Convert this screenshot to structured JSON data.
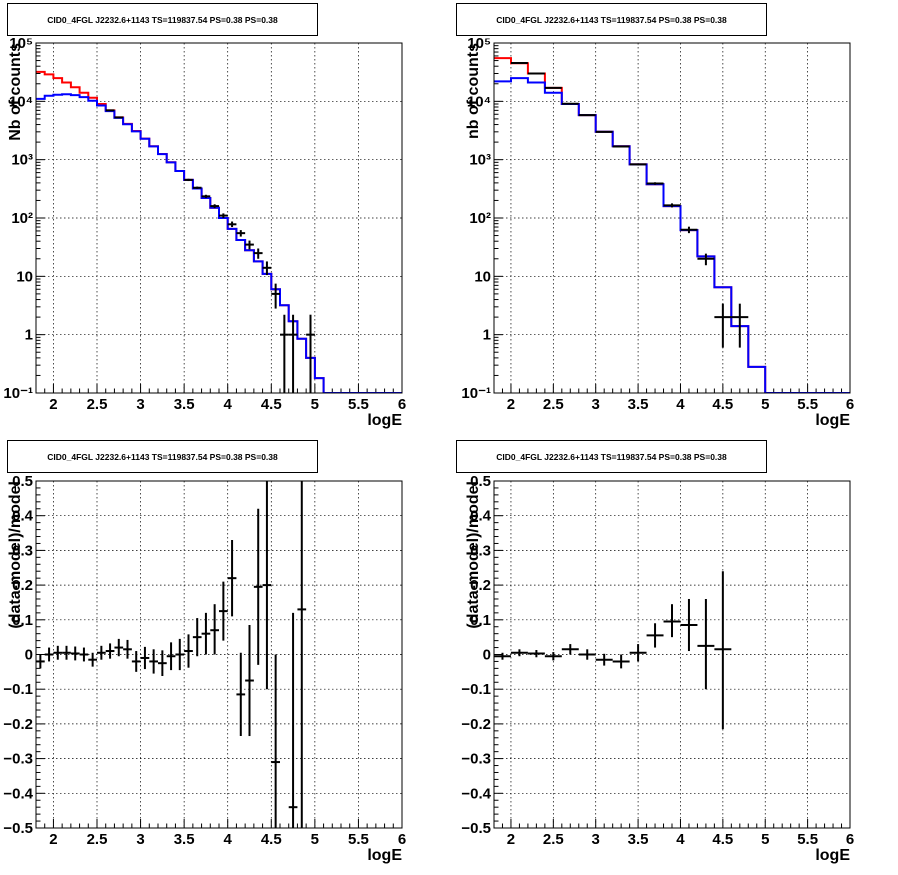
{
  "chart_data": [
    {
      "type": "line",
      "title": "CID0_4FGL J2232.6+1143 TS=119837.54 PS=0.38 PS=0.38",
      "xlabel": "logE",
      "ylabel": "Nb of counts",
      "xlim": [
        1.8,
        6.0
      ],
      "ylim": [
        0.1,
        100000
      ],
      "yscale": "log",
      "grid": true,
      "xticks": [
        "2",
        "2.5",
        "3",
        "3.5",
        "4",
        "4.5",
        "5",
        "5.5",
        "6"
      ],
      "yticks": [
        "10⁻¹",
        "1",
        "10",
        "10²",
        "10³",
        "10⁴",
        "10⁵"
      ],
      "series": [
        {
          "color": "#ff0000",
          "style": "step",
          "bin_edges": [
            1.8,
            1.9,
            2.0,
            2.1,
            2.2,
            2.3,
            2.4,
            2.5,
            2.6,
            2.7,
            2.8,
            2.9,
            3.0,
            3.1,
            3.2,
            3.3,
            3.4,
            3.5,
            3.6,
            3.7,
            3.8,
            3.9,
            4.0,
            4.1,
            4.2,
            4.3,
            4.4,
            4.5,
            4.6,
            4.7,
            4.8,
            4.9,
            5.0,
            5.1,
            5.2,
            5.3,
            5.4,
            5.5,
            5.6,
            5.7,
            5.8,
            5.9,
            6.0
          ],
          "values": [
            32000,
            29000,
            25000,
            21000,
            17500,
            14000,
            11500,
            9000,
            7000,
            5300,
            4100,
            3100,
            2300,
            1700,
            1250,
            900,
            640,
            450,
            320,
            220,
            150,
            100,
            65,
            42,
            28,
            18,
            11,
            6,
            3.2,
            1.7,
            0.85,
            0.4,
            0.18,
            0.1,
            0.1,
            0.1,
            0.1,
            0.1,
            0.1,
            0.1,
            0.1,
            0.1
          ]
        },
        {
          "color": "#0000ff",
          "style": "step",
          "bin_edges": [
            1.8,
            1.9,
            2.0,
            2.1,
            2.2,
            2.3,
            2.4,
            2.5,
            2.6,
            2.7,
            2.8,
            2.9,
            3.0,
            3.1,
            3.2,
            3.3,
            3.4,
            3.5,
            3.6,
            3.7,
            3.8,
            3.9,
            4.0,
            4.1,
            4.2,
            4.3,
            4.4,
            4.5,
            4.6,
            4.7,
            4.8,
            4.9,
            5.0,
            5.1,
            5.2,
            5.3,
            5.4,
            5.5,
            5.6,
            5.7,
            5.8,
            5.9,
            6.0
          ],
          "values": [
            11000,
            12500,
            13000,
            13200,
            12800,
            11800,
            10200,
            8500,
            6800,
            5200,
            4050,
            3050,
            2280,
            1690,
            1245,
            898,
            640,
            450,
            320,
            220,
            150,
            100,
            65,
            42,
            28,
            18,
            11,
            6,
            3.2,
            1.7,
            0.85,
            0.4,
            0.18,
            0.1,
            0.1,
            0.1,
            0.1,
            0.1,
            0.1,
            0.1,
            0.1,
            0.1
          ]
        },
        {
          "color": "#000000",
          "style": "errorbars",
          "points": [
            {
              "x": 2.65,
              "y": 7000,
              "xerr": 0.05,
              "ylo": 6900,
              "yhi": 7100
            },
            {
              "x": 2.75,
              "y": 5300,
              "xerr": 0.05,
              "ylo": 5200,
              "yhi": 5400
            },
            {
              "x": 3.55,
              "y": 450,
              "xerr": 0.05,
              "ylo": 430,
              "yhi": 470
            },
            {
              "x": 3.65,
              "y": 330,
              "xerr": 0.05,
              "ylo": 315,
              "yhi": 345
            },
            {
              "x": 3.75,
              "y": 235,
              "xerr": 0.05,
              "ylo": 220,
              "yhi": 250
            },
            {
              "x": 3.85,
              "y": 160,
              "xerr": 0.05,
              "ylo": 148,
              "yhi": 172
            },
            {
              "x": 3.95,
              "y": 110,
              "xerr": 0.05,
              "ylo": 100,
              "yhi": 120
            },
            {
              "x": 4.05,
              "y": 78,
              "xerr": 0.05,
              "ylo": 70,
              "yhi": 87
            },
            {
              "x": 4.15,
              "y": 55,
              "xerr": 0.05,
              "ylo": 48,
              "yhi": 62
            },
            {
              "x": 4.25,
              "y": 35,
              "xerr": 0.05,
              "ylo": 29,
              "yhi": 41
            },
            {
              "x": 4.35,
              "y": 25,
              "xerr": 0.05,
              "ylo": 20,
              "yhi": 30
            },
            {
              "x": 4.45,
              "y": 14,
              "xerr": 0.05,
              "ylo": 10.5,
              "yhi": 18
            },
            {
              "x": 4.55,
              "y": 5,
              "xerr": 0.05,
              "ylo": 2.8,
              "yhi": 7.5
            },
            {
              "x": 4.65,
              "y": 1,
              "xerr": 0.05,
              "ylo": 0.1,
              "yhi": 2.2
            },
            {
              "x": 4.75,
              "y": 1,
              "xerr": 0.05,
              "ylo": 0.1,
              "yhi": 2.2
            },
            {
              "x": 4.95,
              "y": 1,
              "xerr": 0.05,
              "ylo": 0.1,
              "yhi": 2.2
            }
          ]
        }
      ]
    },
    {
      "type": "line",
      "title": "CID0_4FGL J2232.6+1143 TS=119837.54 PS=0.38 PS=0.38",
      "xlabel": "logE",
      "ylabel": "nb of counts",
      "xlim": [
        1.8,
        6.0
      ],
      "ylim": [
        0.1,
        100000
      ],
      "yscale": "log",
      "grid": true,
      "xticks": [
        "2",
        "2.5",
        "3",
        "3.5",
        "4",
        "4.5",
        "5",
        "5.5",
        "6"
      ],
      "yticks": [
        "10⁻¹",
        "1",
        "10",
        "10²",
        "10³",
        "10⁴",
        "10⁵"
      ],
      "series": [
        {
          "color": "#ff0000",
          "style": "step",
          "bin_edges": [
            1.8,
            2.0,
            2.2,
            2.4,
            2.6,
            2.8,
            3.0,
            3.2,
            3.4,
            3.6,
            3.8,
            4.0,
            4.2,
            4.4,
            4.6,
            4.8,
            5.0,
            5.2,
            5.4,
            5.6,
            5.8,
            6.0
          ],
          "values": [
            55000,
            45000,
            30000,
            17000,
            9000,
            5800,
            3000,
            1700,
            830,
            380,
            160,
            62,
            22,
            6.5,
            1.4,
            0.28,
            0.1,
            0.1,
            0.1,
            0.1,
            0.1
          ]
        },
        {
          "color": "#0000ff",
          "style": "step",
          "bin_edges": [
            1.8,
            2.0,
            2.2,
            2.4,
            2.6,
            2.8,
            3.0,
            3.2,
            3.4,
            3.6,
            3.8,
            4.0,
            4.2,
            4.4,
            4.6,
            4.8,
            5.0,
            5.2,
            5.4,
            5.6,
            5.8,
            6.0
          ],
          "values": [
            22000,
            25000,
            21000,
            14000,
            9000,
            5800,
            3000,
            1700,
            830,
            380,
            160,
            62,
            22,
            6.5,
            1.4,
            0.28,
            0.1,
            0.1,
            0.1,
            0.1,
            0.1
          ]
        },
        {
          "color": "#000000",
          "style": "errorbars",
          "points": [
            {
              "x": 2.1,
              "y": 45500,
              "xerr": 0.1,
              "ylo": 45200,
              "yhi": 45800
            },
            {
              "x": 2.3,
              "y": 30000,
              "xerr": 0.1,
              "ylo": 29800,
              "yhi": 30200
            },
            {
              "x": 2.5,
              "y": 17000,
              "xerr": 0.1,
              "ylo": 16850,
              "yhi": 17150
            },
            {
              "x": 2.7,
              "y": 9100,
              "xerr": 0.1,
              "ylo": 9000,
              "yhi": 9200
            },
            {
              "x": 2.9,
              "y": 5800,
              "xerr": 0.1,
              "ylo": 5720,
              "yhi": 5880
            },
            {
              "x": 3.1,
              "y": 3000,
              "xerr": 0.1,
              "ylo": 2950,
              "yhi": 3050
            },
            {
              "x": 3.3,
              "y": 1680,
              "xerr": 0.1,
              "ylo": 1640,
              "yhi": 1720
            },
            {
              "x": 3.5,
              "y": 830,
              "xerr": 0.1,
              "ylo": 800,
              "yhi": 860
            },
            {
              "x": 3.7,
              "y": 390,
              "xerr": 0.1,
              "ylo": 370,
              "yhi": 410
            },
            {
              "x": 3.9,
              "y": 165,
              "xerr": 0.1,
              "ylo": 152,
              "yhi": 178
            },
            {
              "x": 4.1,
              "y": 63,
              "xerr": 0.1,
              "ylo": 55,
              "yhi": 71
            },
            {
              "x": 4.3,
              "y": 20,
              "xerr": 0.1,
              "ylo": 15.5,
              "yhi": 24.5
            },
            {
              "x": 4.5,
              "y": 2,
              "xerr": 0.1,
              "ylo": 0.6,
              "yhi": 3.4
            },
            {
              "x": 4.7,
              "y": 2,
              "xerr": 0.1,
              "ylo": 0.6,
              "yhi": 3.4
            }
          ]
        }
      ]
    },
    {
      "type": "scatter",
      "title": "CID0_4FGL J2232.6+1143 TS=119837.54 PS=0.38 PS=0.38",
      "xlabel": "logE",
      "ylabel": "(data-model)/model",
      "xlim": [
        1.8,
        6.0
      ],
      "ylim": [
        -0.5,
        0.5
      ],
      "grid": true,
      "xticks": [
        "2",
        "2.5",
        "3",
        "3.5",
        "4",
        "4.5",
        "5",
        "5.5",
        "6"
      ],
      "yticks": [
        "−0.5",
        "−0.4",
        "−0.3",
        "−0.2",
        "−0.1",
        "0",
        "0.1",
        "0.2",
        "0.3",
        "0.4",
        "0.5"
      ],
      "series": [
        {
          "color": "#000000",
          "style": "errorbars",
          "points": [
            {
              "x": 1.85,
              "y": -0.02,
              "xerr": 0.05,
              "ylo": -0.04,
              "yhi": 0.0
            },
            {
              "x": 1.95,
              "y": 0.0,
              "xerr": 0.05,
              "ylo": -0.02,
              "yhi": 0.02
            },
            {
              "x": 2.05,
              "y": 0.005,
              "xerr": 0.05,
              "ylo": -0.015,
              "yhi": 0.025
            },
            {
              "x": 2.15,
              "y": 0.005,
              "xerr": 0.05,
              "ylo": -0.015,
              "yhi": 0.025
            },
            {
              "x": 2.25,
              "y": 0.003,
              "xerr": 0.05,
              "ylo": -0.017,
              "yhi": 0.023
            },
            {
              "x": 2.35,
              "y": 0.0,
              "xerr": 0.05,
              "ylo": -0.02,
              "yhi": 0.02
            },
            {
              "x": 2.45,
              "y": -0.015,
              "xerr": 0.05,
              "ylo": -0.035,
              "yhi": 0.005
            },
            {
              "x": 2.55,
              "y": 0.005,
              "xerr": 0.05,
              "ylo": -0.015,
              "yhi": 0.025
            },
            {
              "x": 2.65,
              "y": 0.01,
              "xerr": 0.05,
              "ylo": -0.012,
              "yhi": 0.032
            },
            {
              "x": 2.75,
              "y": 0.02,
              "xerr": 0.05,
              "ylo": -0.005,
              "yhi": 0.045
            },
            {
              "x": 2.85,
              "y": 0.015,
              "xerr": 0.05,
              "ylo": -0.012,
              "yhi": 0.042
            },
            {
              "x": 2.95,
              "y": -0.02,
              "xerr": 0.05,
              "ylo": -0.05,
              "yhi": 0.01
            },
            {
              "x": 3.05,
              "y": -0.01,
              "xerr": 0.05,
              "ylo": -0.042,
              "yhi": 0.022
            },
            {
              "x": 3.15,
              "y": -0.02,
              "xerr": 0.05,
              "ylo": -0.055,
              "yhi": 0.015
            },
            {
              "x": 3.25,
              "y": -0.025,
              "xerr": 0.05,
              "ylo": -0.062,
              "yhi": 0.012
            },
            {
              "x": 3.35,
              "y": -0.005,
              "xerr": 0.05,
              "ylo": -0.045,
              "yhi": 0.035
            },
            {
              "x": 3.45,
              "y": 0.0,
              "xerr": 0.05,
              "ylo": -0.045,
              "yhi": 0.045
            },
            {
              "x": 3.55,
              "y": 0.01,
              "xerr": 0.05,
              "ylo": -0.038,
              "yhi": 0.058
            },
            {
              "x": 3.65,
              "y": 0.05,
              "xerr": 0.05,
              "ylo": -0.005,
              "yhi": 0.105
            },
            {
              "x": 3.75,
              "y": 0.06,
              "xerr": 0.05,
              "ylo": 0.0,
              "yhi": 0.12
            },
            {
              "x": 3.85,
              "y": 0.07,
              "xerr": 0.05,
              "ylo": 0.0,
              "yhi": 0.145
            },
            {
              "x": 3.95,
              "y": 0.125,
              "xerr": 0.05,
              "ylo": 0.04,
              "yhi": 0.21
            },
            {
              "x": 4.05,
              "y": 0.22,
              "xerr": 0.05,
              "ylo": 0.11,
              "yhi": 0.33
            },
            {
              "x": 4.15,
              "y": -0.115,
              "xerr": 0.05,
              "ylo": -0.235,
              "yhi": 0.005
            },
            {
              "x": 4.25,
              "y": -0.075,
              "xerr": 0.05,
              "ylo": -0.235,
              "yhi": 0.085
            },
            {
              "x": 4.35,
              "y": 0.195,
              "xerr": 0.05,
              "ylo": -0.03,
              "yhi": 0.42
            },
            {
              "x": 4.45,
              "y": 0.2,
              "xerr": 0.05,
              "ylo": -0.1,
              "yhi": 0.5
            },
            {
              "x": 4.55,
              "y": -0.31,
              "xerr": 0.05,
              "ylo": -0.5,
              "yhi": 0.0
            },
            {
              "x": 4.75,
              "y": -0.44,
              "xerr": 0.05,
              "ylo": -0.5,
              "yhi": 0.12
            },
            {
              "x": 4.85,
              "y": 0.13,
              "xerr": 0.05,
              "ylo": -0.5,
              "yhi": 0.5
            }
          ]
        }
      ]
    },
    {
      "type": "scatter",
      "title": "CID0_4FGL J2232.6+1143 TS=119837.54 PS=0.38 PS=0.38",
      "xlabel": "logE",
      "ylabel": "(data-model)/model",
      "xlim": [
        1.8,
        6.0
      ],
      "ylim": [
        -0.5,
        0.5
      ],
      "grid": true,
      "xticks": [
        "2",
        "2.5",
        "3",
        "3.5",
        "4",
        "4.5",
        "5",
        "5.5",
        "6"
      ],
      "yticks": [
        "−0.5",
        "−0.4",
        "−0.3",
        "−0.2",
        "−0.1",
        "0",
        "0.1",
        "0.2",
        "0.3",
        "0.4",
        "0.5"
      ],
      "series": [
        {
          "color": "#000000",
          "style": "errorbars",
          "points": [
            {
              "x": 1.9,
              "y": -0.005,
              "xerr": 0.1,
              "ylo": -0.015,
              "yhi": 0.005
            },
            {
              "x": 2.1,
              "y": 0.005,
              "xerr": 0.1,
              "ylo": -0.005,
              "yhi": 0.015
            },
            {
              "x": 2.3,
              "y": 0.003,
              "xerr": 0.1,
              "ylo": -0.008,
              "yhi": 0.013
            },
            {
              "x": 2.5,
              "y": -0.005,
              "xerr": 0.1,
              "ylo": -0.017,
              "yhi": 0.007
            },
            {
              "x": 2.7,
              "y": 0.015,
              "xerr": 0.1,
              "ylo": 0.0,
              "yhi": 0.03
            },
            {
              "x": 2.9,
              "y": 0.0,
              "xerr": 0.1,
              "ylo": -0.015,
              "yhi": 0.015
            },
            {
              "x": 3.1,
              "y": -0.015,
              "xerr": 0.1,
              "ylo": -0.032,
              "yhi": 0.002
            },
            {
              "x": 3.3,
              "y": -0.02,
              "xerr": 0.1,
              "ylo": -0.04,
              "yhi": 0.0
            },
            {
              "x": 3.5,
              "y": 0.005,
              "xerr": 0.1,
              "ylo": -0.02,
              "yhi": 0.03
            },
            {
              "x": 3.7,
              "y": 0.055,
              "xerr": 0.1,
              "ylo": 0.02,
              "yhi": 0.09
            },
            {
              "x": 3.9,
              "y": 0.095,
              "xerr": 0.1,
              "ylo": 0.05,
              "yhi": 0.145
            },
            {
              "x": 4.1,
              "y": 0.085,
              "xerr": 0.1,
              "ylo": 0.01,
              "yhi": 0.16
            },
            {
              "x": 4.3,
              "y": 0.025,
              "xerr": 0.1,
              "ylo": -0.1,
              "yhi": 0.16
            },
            {
              "x": 4.5,
              "y": 0.015,
              "xerr": 0.1,
              "ylo": -0.215,
              "yhi": 0.24
            }
          ]
        }
      ]
    }
  ]
}
